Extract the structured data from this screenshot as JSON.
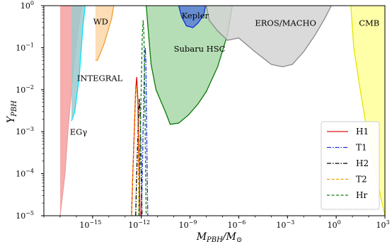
{
  "chart_data": {
    "type": "line",
    "xlabel": "M_PBH/M_⊙",
    "ylabel": "Y_PBH",
    "x_scale": "log",
    "y_scale": "log",
    "xlim": [
      1e-18,
      1000
    ],
    "ylim": [
      1e-05,
      1
    ],
    "grid": false,
    "legend_position": "lower-right",
    "x_ticks": [
      {
        "value": 1e-15,
        "label": "10",
        "exp": "−15"
      },
      {
        "value": 1e-12,
        "label": "10",
        "exp": "−12"
      },
      {
        "value": 1e-09,
        "label": "10",
        "exp": "−9"
      },
      {
        "value": 1e-06,
        "label": "10",
        "exp": "−6"
      },
      {
        "value": 0.001,
        "label": "10",
        "exp": "−3"
      },
      {
        "value": 1,
        "label": "10",
        "exp": "0"
      },
      {
        "value": 1000,
        "label": "10",
        "exp": "3"
      }
    ],
    "y_ticks": [
      {
        "value": 1e-05,
        "label": "10",
        "exp": "−5"
      },
      {
        "value": 0.0001,
        "label": "10",
        "exp": "−4"
      },
      {
        "value": 0.001,
        "label": "10",
        "exp": "−3"
      },
      {
        "value": 0.01,
        "label": "10",
        "exp": "−2"
      },
      {
        "value": 0.1,
        "label": "10",
        "exp": "−1"
      },
      {
        "value": 1,
        "label": "10",
        "exp": "0"
      }
    ],
    "constraints": [
      {
        "name": "EGγ",
        "color": "#f4a0a0",
        "edge": "#e8a0a0",
        "boundary": [
          [
            1e-17,
            1e-05
          ],
          [
            2e-17,
            0.0001
          ],
          [
            3e-17,
            0.001
          ],
          [
            5e-17,
            0.01
          ],
          [
            9e-17,
            0.1
          ],
          [
            2e-16,
            1
          ]
        ]
      },
      {
        "name": "INTEGRAL",
        "color": "#9ec9cc",
        "edge": "#00e5ff",
        "boundary": [
          [
            5e-17,
            0.0018
          ],
          [
            8e-17,
            0.003
          ],
          [
            1.5e-16,
            0.02
          ],
          [
            2.5e-16,
            0.3
          ],
          [
            3.5e-16,
            1
          ]
        ]
      },
      {
        "name": "WD",
        "color": "#fcd7a8",
        "edge": "#f0a030",
        "boundary": [
          [
            1.5e-15,
            0.05
          ],
          [
            2e-15,
            0.05
          ],
          [
            5e-15,
            0.12
          ],
          [
            1.5e-14,
            0.5
          ],
          [
            2e-14,
            1
          ]
        ]
      },
      {
        "name": "Subaru HSC",
        "color": "#a9d8a9",
        "edge": "#0a7a0a",
        "boundary": [
          [
            2e-12,
            1
          ],
          [
            4e-12,
            0.04
          ],
          [
            8e-12,
            0.01
          ],
          [
            3e-11,
            0.003
          ],
          [
            6e-11,
            0.0015
          ],
          [
            2e-10,
            0.0016
          ],
          [
            8e-10,
            0.0025
          ],
          [
            3e-09,
            0.0045
          ],
          [
            1e-08,
            0.009
          ],
          [
            5e-08,
            0.035
          ],
          [
            2e-07,
            0.2
          ],
          [
            4e-07,
            1
          ]
        ]
      },
      {
        "name": "Kepler",
        "color": "#5a7fd6",
        "edge": "#0b2fd6",
        "boundary": [
          [
            2e-10,
            1
          ],
          [
            3e-10,
            0.55
          ],
          [
            6e-10,
            0.33
          ],
          [
            1.5e-09,
            0.3
          ],
          [
            3e-09,
            0.38
          ],
          [
            7e-09,
            0.6
          ],
          [
            9e-09,
            1
          ]
        ]
      },
      {
        "name": "EROS/MACHO",
        "color": "#d4d4d4",
        "edge": "#8a8a8a",
        "boundary": [
          [
            1e-08,
            1
          ],
          [
            1.5e-08,
            0.45
          ],
          [
            5e-08,
            0.25
          ],
          [
            2e-07,
            0.15
          ],
          [
            1e-06,
            0.17
          ],
          [
            1e-05,
            0.08
          ],
          [
            0.0001,
            0.04
          ],
          [
            0.0005,
            0.035
          ],
          [
            0.002,
            0.04
          ],
          [
            0.01,
            0.08
          ],
          [
            0.05,
            0.2
          ],
          [
            0.2,
            0.5
          ],
          [
            0.5,
            1
          ]
        ]
      },
      {
        "name": "CMB",
        "color": "#ffff99",
        "edge": "#e5e500",
        "boundary": [
          [
            8,
            1
          ],
          [
            12,
            0.1
          ],
          [
            30,
            0.01
          ],
          [
            60,
            0.002
          ],
          [
            150,
            0.0003
          ],
          [
            400,
            5e-05
          ],
          [
            1000,
            1e-05
          ]
        ]
      }
    ],
    "series": [
      {
        "name": "H1",
        "color": "#e01010",
        "dash": "solid",
        "points": [
          [
            2.5e-13,
            1e-05
          ],
          [
            3e-13,
            0.0001
          ],
          [
            3.7e-13,
            0.001
          ],
          [
            4.5e-13,
            0.01
          ],
          [
            5.2e-13,
            0.02
          ],
          [
            6e-13,
            0.007
          ],
          [
            7e-13,
            0.0005
          ],
          [
            8e-13,
            3e-05
          ],
          [
            8.5e-13,
            1e-05
          ]
        ]
      },
      {
        "name": "T1",
        "color": "#2030d8",
        "dash": "dashdot",
        "points": [
          [
            1e-12,
            1e-05
          ],
          [
            1.15e-12,
            0.0001
          ],
          [
            1.35e-12,
            0.003
          ],
          [
            1.6e-12,
            0.05
          ],
          [
            1.75e-12,
            0.1
          ],
          [
            1.9e-12,
            0.05
          ],
          [
            2.1e-12,
            0.002
          ],
          [
            2.3e-12,
            0.0001
          ],
          [
            2.5e-12,
            1e-05
          ]
        ]
      },
      {
        "name": "H2",
        "color": "#000000",
        "dash": "dashdot",
        "points": [
          [
            4.5e-13,
            1e-05
          ],
          [
            5.2e-13,
            0.0001
          ],
          [
            6.2e-13,
            0.001
          ],
          [
            7.5e-13,
            0.006
          ],
          [
            8.5e-13,
            0.003
          ],
          [
            9.5e-13,
            0.0003
          ],
          [
            1.05e-12,
            3e-05
          ],
          [
            1.1e-12,
            1e-05
          ]
        ]
      },
      {
        "name": "T2",
        "color": "#f0a000",
        "dash": "dashed",
        "points": [
          [
            2.5e-13,
            1e-05
          ],
          [
            3e-13,
            0.0001
          ],
          [
            3.6e-13,
            0.001
          ],
          [
            4.3e-13,
            0.008
          ],
          [
            5e-13,
            0.012
          ],
          [
            5.8e-13,
            0.005
          ],
          [
            6.5e-13,
            0.0003
          ],
          [
            7e-13,
            1e-05
          ]
        ]
      },
      {
        "name": "Hr",
        "color": "#108010",
        "dash": "dashed",
        "points": [
          [
            7e-13,
            1e-05
          ],
          [
            8e-13,
            0.0001
          ],
          [
            9.5e-13,
            0.005
          ],
          [
            1.15e-12,
            0.2
          ],
          [
            1.3e-12,
            0.45
          ],
          [
            1.45e-12,
            0.2
          ],
          [
            1.65e-12,
            0.005
          ],
          [
            1.85e-12,
            0.0001
          ],
          [
            2e-12,
            1e-05
          ]
        ]
      }
    ],
    "annotations": [
      {
        "text": "EGγ",
        "x": 4e-17,
        "y": 0.00085
      },
      {
        "text": "INTEGRAL",
        "x": 1.1e-16,
        "y": 0.016
      },
      {
        "text": "WD",
        "x": 1.1e-15,
        "y": 0.36
      },
      {
        "text": "Kepler",
        "x": 3e-10,
        "y": 0.5
      },
      {
        "text": "Subaru HSC",
        "x": 1e-10,
        "y": 0.08
      },
      {
        "text": "EROS/MACHO",
        "x": 1e-05,
        "y": 0.33
      },
      {
        "text": "CMB",
        "x": 25,
        "y": 0.33
      }
    ]
  }
}
